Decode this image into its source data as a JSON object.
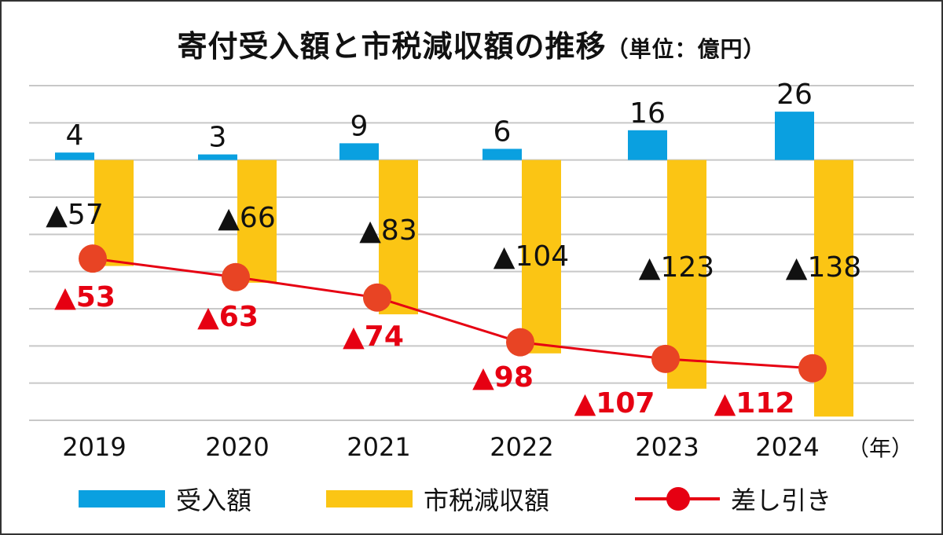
{
  "chart_data": {
    "type": "bar",
    "title": "寄付受入額と市税減収額の推移",
    "unit": "（単位：億円）",
    "x_unit": "（年）",
    "categories": [
      "2019",
      "2020",
      "2021",
      "2022",
      "2023",
      "2024"
    ],
    "ylim": [
      -140,
      40
    ],
    "grid": true,
    "legend_placement": "bottom",
    "series": [
      {
        "name": "受入額",
        "type": "bar",
        "color": "#0aa0e0",
        "values": [
          4,
          3,
          9,
          6,
          16,
          26
        ],
        "labels": [
          "4",
          "3",
          "9",
          "6",
          "16",
          "26"
        ]
      },
      {
        "name": "市税減収額",
        "type": "bar",
        "color": "#fbc514",
        "values": [
          -57,
          -66,
          -83,
          -104,
          -123,
          -138
        ],
        "labels": [
          "▲57",
          "▲66",
          "▲83",
          "▲104",
          "▲123",
          "▲138"
        ]
      },
      {
        "name": "差し引き",
        "type": "line",
        "color": "#e60012",
        "marker_color": "#e84424",
        "values": [
          -53,
          -63,
          -74,
          -98,
          -107,
          -112
        ],
        "labels": [
          "▲53",
          "▲63",
          "▲74",
          "▲98",
          "▲107",
          "▲112"
        ]
      }
    ]
  }
}
